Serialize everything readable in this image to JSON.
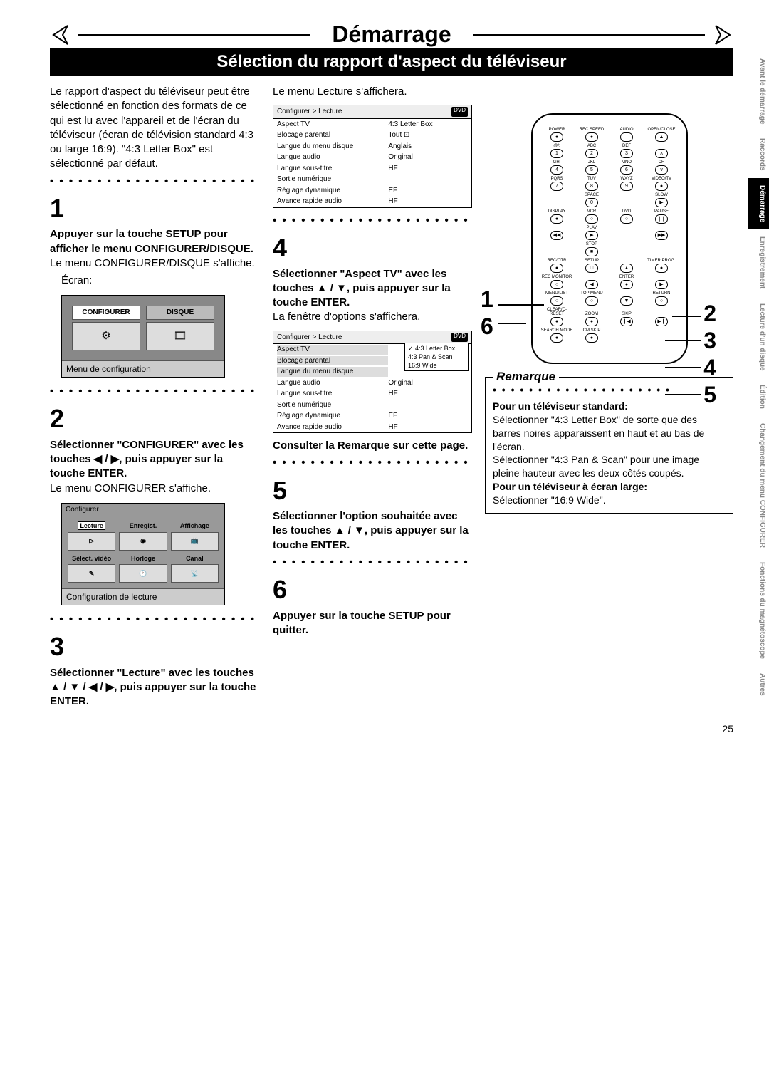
{
  "page_number": "25",
  "header": {
    "main_title": "Démarrage",
    "subtitle": "Sélection du rapport d'aspect du téléviseur"
  },
  "side_tabs": [
    {
      "label": "Avant le démarrage",
      "active": false
    },
    {
      "label": "Raccords",
      "active": false
    },
    {
      "label": "Démarrage",
      "active": true
    },
    {
      "label": "Enregistrement",
      "active": false
    },
    {
      "label": "Lecture d'un disque",
      "active": false
    },
    {
      "label": "Édition",
      "active": false
    },
    {
      "label": "Changement du menu CONFIGURER",
      "active": false
    },
    {
      "label": "Fonctions du magnétoscope",
      "active": false
    },
    {
      "label": "Autres",
      "active": false
    }
  ],
  "col1": {
    "intro": "Le rapport d'aspect du téléviseur peut être sélectionné en fonction des formats de ce qui est lu avec l'appareil et de l'écran du téléviseur (écran de télévision standard 4:3 ou large 16:9). \"4:3 Letter Box\" est sélectionné par défaut.",
    "step1": {
      "num": "1",
      "bold": "Appuyer sur la touche SETUP pour afficher le menu CONFIGURER/DISQUE.",
      "text": "Le menu CONFIGURER/DISQUE s'affiche.",
      "ecran": "Écran:",
      "screen": {
        "items": [
          "CONFIGURER",
          "DISQUE"
        ],
        "caption": "Menu de configuration"
      }
    },
    "step2": {
      "num": "2",
      "bold": "Sélectionner \"CONFIGURER\" avec les touches ◀ / ▶, puis appuyer sur la touche ENTER.",
      "text": "Le menu CONFIGURER s'affiche.",
      "screen": {
        "header": "Configurer",
        "items": [
          "Lecture",
          "Enregist.",
          "Affichage",
          "Sélect. vidéo",
          "Horloge",
          "Canal"
        ],
        "caption": "Configuration de lecture"
      }
    },
    "step3": {
      "num": "3",
      "bold": "Sélectionner \"Lecture\" avec les touches ▲ / ▼ / ◀ / ▶, puis appuyer sur la touche ENTER."
    }
  },
  "col2": {
    "intro": "Le menu Lecture s'affichera.",
    "menu1": {
      "breadcrumb": "Configurer > Lecture",
      "badge": "DVD",
      "rows": [
        {
          "label": "Aspect TV",
          "val": "4:3 Letter Box"
        },
        {
          "label": "Blocage parental",
          "val": "Tout ⊡"
        },
        {
          "label": "Langue du menu disque",
          "val": "Anglais"
        },
        {
          "label": "Langue audio",
          "val": "Original"
        },
        {
          "label": "Langue sous-titre",
          "val": "HF"
        },
        {
          "label": "Sortie numérique",
          "val": ""
        },
        {
          "label": "Réglage dynamique",
          "val": "EF"
        },
        {
          "label": "Avance rapide audio",
          "val": "HF"
        }
      ]
    },
    "step4": {
      "num": "4",
      "bold": "Sélectionner \"Aspect TV\" avec les touches ▲ / ▼, puis appuyer sur la touche ENTER.",
      "text": "La fenêtre d'options s'affichera."
    },
    "menu2": {
      "breadcrumb": "Configurer > Lecture",
      "badge": "DVD",
      "rows": [
        {
          "label": "Aspect TV",
          "val": "",
          "hl": true
        },
        {
          "label": "Blocage parental",
          "val": "",
          "hl": true
        },
        {
          "label": "Langue du menu disque",
          "val": "",
          "hl": true
        },
        {
          "label": "Langue audio",
          "val": "Original"
        },
        {
          "label": "Langue sous-titre",
          "val": "HF"
        },
        {
          "label": "Sortie numérique",
          "val": ""
        },
        {
          "label": "Réglage dynamique",
          "val": "EF"
        },
        {
          "label": "Avance rapide audio",
          "val": "HF"
        }
      ],
      "popup": [
        "✓ 4:3 Letter Box",
        "4:3 Pan & Scan",
        "16:9 Wide"
      ]
    },
    "consult": "Consulter la Remarque sur cette page.",
    "step5": {
      "num": "5",
      "bold": "Sélectionner l'option souhaitée avec les touches ▲ / ▼, puis appuyer sur la touche ENTER."
    },
    "step6": {
      "num": "6",
      "bold": "Appuyer sur la touche SETUP pour quitter."
    }
  },
  "col3": {
    "callouts_left": [
      "1",
      "6"
    ],
    "callouts_right": [
      "2",
      "3",
      "4",
      "5"
    ],
    "remote": {
      "rows": [
        [
          {
            "lbl": "POWER",
            "t": "●"
          },
          {
            "lbl": "REC SPEED",
            "t": "●"
          },
          {
            "lbl": "AUDIO",
            "t": ""
          },
          {
            "lbl": "OPEN/CLOSE",
            "t": "▲"
          }
        ],
        [
          {
            "lbl": "@/:",
            "t": "1"
          },
          {
            "lbl": "ABC",
            "t": "2"
          },
          {
            "lbl": "DEF",
            "t": "3"
          },
          {
            "lbl": "",
            "t": "∧"
          }
        ],
        [
          {
            "lbl": "GHI",
            "t": "4"
          },
          {
            "lbl": "JKL",
            "t": "5"
          },
          {
            "lbl": "MNO",
            "t": "6"
          },
          {
            "lbl": "CH",
            "t": "∨"
          }
        ],
        [
          {
            "lbl": "PQRS",
            "t": "7"
          },
          {
            "lbl": "TUV",
            "t": "8"
          },
          {
            "lbl": "WXYZ",
            "t": "9"
          },
          {
            "lbl": "VIDEO/TV",
            "t": "●"
          }
        ],
        [
          {
            "lbl": "",
            "t": ""
          },
          {
            "lbl": "SPACE",
            "t": "0"
          },
          {
            "lbl": "",
            "t": ""
          },
          {
            "lbl": "SLOW",
            "t": "▶"
          }
        ],
        [
          {
            "lbl": "DISPLAY",
            "t": "●"
          },
          {
            "lbl": "VCR",
            "t": "○"
          },
          {
            "lbl": "DVD",
            "t": "○"
          },
          {
            "lbl": "PAUSE",
            "t": "❙❙"
          }
        ],
        [
          {
            "lbl": "",
            "t": "◀◀"
          },
          {
            "lbl": "PLAY",
            "t": "▶"
          },
          {
            "lbl": "",
            "t": ""
          },
          {
            "lbl": "",
            "t": "▶▶"
          }
        ],
        [
          {
            "lbl": "",
            "t": ""
          },
          {
            "lbl": "STOP",
            "t": "■"
          },
          {
            "lbl": "",
            "t": ""
          },
          {
            "lbl": "",
            "t": ""
          }
        ],
        [
          {
            "lbl": "REC/OTR",
            "t": "●"
          },
          {
            "lbl": "SETUP",
            "t": "□"
          },
          {
            "lbl": "",
            "t": "▲"
          },
          {
            "lbl": "TIMER PROG.",
            "t": "●"
          }
        ],
        [
          {
            "lbl": "REC MONITOR",
            "t": "○"
          },
          {
            "lbl": "",
            "t": "◀"
          },
          {
            "lbl": "ENTER",
            "t": "●"
          },
          {
            "lbl": "",
            "t": "▶"
          }
        ],
        [
          {
            "lbl": "MENU/LIST",
            "t": "○"
          },
          {
            "lbl": "TOP MENU",
            "t": "○"
          },
          {
            "lbl": "",
            "t": "▼"
          },
          {
            "lbl": "RETURN",
            "t": "○"
          }
        ],
        [
          {
            "lbl": "CLEAR/C-RESET",
            "t": "●"
          },
          {
            "lbl": "ZOOM",
            "t": "●"
          },
          {
            "lbl": "SKIP",
            "t": "❙◀"
          },
          {
            "lbl": "",
            "t": "▶❙"
          }
        ],
        [
          {
            "lbl": "SEARCH MODE",
            "t": "●"
          },
          {
            "lbl": "CM SKIP",
            "t": "●"
          },
          {
            "lbl": "",
            "t": ""
          },
          {
            "lbl": "",
            "t": ""
          }
        ]
      ]
    },
    "remarque": {
      "title": "Remarque",
      "h1": "Pour un téléviseur standard:",
      "t1": "Sélectionner \"4:3 Letter Box\" de sorte que des barres noires apparaissent en haut et au bas de l'écran.",
      "t2": "Sélectionner \"4:3 Pan & Scan\" pour une image pleine hauteur avec les deux côtés coupés.",
      "h2": "Pour un téléviseur à écran large:",
      "t3": "Sélectionner \"16:9 Wide\"."
    }
  },
  "colors": {
    "black": "#000000",
    "white": "#ffffff",
    "grey_screen": "#888888",
    "grey_caption": "#cccccc",
    "side_inactive": "#888888"
  }
}
